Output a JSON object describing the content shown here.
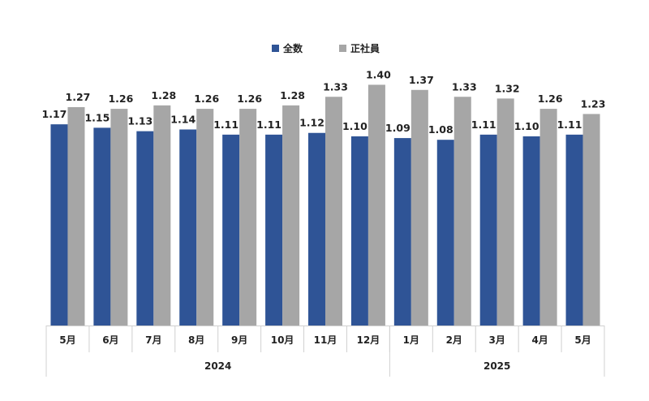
{
  "chart_data": {
    "type": "bar",
    "categories": [
      "5月",
      "6月",
      "7月",
      "8月",
      "9月",
      "10月",
      "11月",
      "12月",
      "1月",
      "2月",
      "3月",
      "4月",
      "5月"
    ],
    "year_groups": [
      {
        "label": "2024",
        "count": 8
      },
      {
        "label": "2025",
        "count": 5
      }
    ],
    "series": [
      {
        "name": "全数",
        "color": "#2f5496",
        "values": [
          1.17,
          1.15,
          1.13,
          1.14,
          1.11,
          1.11,
          1.12,
          1.1,
          1.09,
          1.08,
          1.11,
          1.1,
          1.11
        ]
      },
      {
        "name": "正社員",
        "color": "#a6a6a6",
        "values": [
          1.27,
          1.26,
          1.28,
          1.26,
          1.26,
          1.28,
          1.33,
          1.4,
          1.37,
          1.33,
          1.32,
          1.26,
          1.23
        ]
      }
    ],
    "ylim": [
      0,
      1.52
    ],
    "legend": "top-center",
    "grid": false
  }
}
